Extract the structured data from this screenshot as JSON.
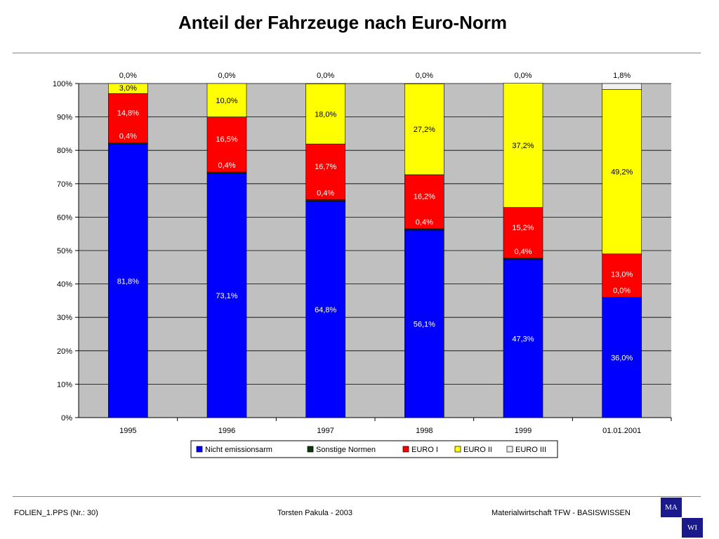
{
  "slide": {
    "title": "Anteil der Fahrzeuge nach Euro-Norm"
  },
  "footer": {
    "left": "FOLIEN_1.PPS (Nr.: 30)",
    "center": "Torsten Pakula - 2003",
    "right": "Materialwirtschaft TFW - BASISWISSEN"
  },
  "logo": {
    "top": "MA",
    "bottom": "WI"
  },
  "chart_data": {
    "type": "bar",
    "stacked": true,
    "title": "",
    "xlabel": "",
    "ylabel": "",
    "ylim": [
      0,
      100
    ],
    "y_ticks": [
      "0%",
      "10%",
      "20%",
      "30%",
      "40%",
      "50%",
      "60%",
      "70%",
      "80%",
      "90%",
      "100%"
    ],
    "grid": "horizontal, every 10%",
    "legend_position": "bottom",
    "categories": [
      "1995",
      "1996",
      "1997",
      "1998",
      "1999",
      "01.01.2001"
    ],
    "series": [
      {
        "name": "Nicht emissionsarm",
        "color": "#0000ff",
        "values": [
          81.8,
          73.1,
          64.8,
          56.1,
          47.3,
          36.0
        ],
        "labels": [
          "81,8%",
          "73,1%",
          "64,8%",
          "56,1%",
          "47,3%",
          "36,0%"
        ]
      },
      {
        "name": "Sonstige Normen",
        "color": "#0a3a0a",
        "values": [
          0.4,
          0.4,
          0.4,
          0.4,
          0.4,
          0.0
        ],
        "labels": [
          "0,4%",
          "0,4%",
          "0,4%",
          "0,4%",
          "0,4%",
          "0,0%"
        ]
      },
      {
        "name": "EURO I",
        "color": "#ff0000",
        "values": [
          14.8,
          16.5,
          16.7,
          16.2,
          15.2,
          13.0
        ],
        "labels": [
          "14,8%",
          "16,5%",
          "16,7%",
          "16,2%",
          "15,2%",
          "13,0%"
        ]
      },
      {
        "name": "EURO II",
        "color": "#ffff00",
        "values": [
          3.0,
          10.0,
          18.0,
          27.2,
          37.2,
          49.2
        ],
        "labels": [
          "3,0%",
          "10,0%",
          "18,0%",
          "27,2%",
          "37,2%",
          "49,2%"
        ]
      },
      {
        "name": "EURO III",
        "color": "#f0f0f0",
        "values": [
          0.0,
          0.0,
          0.0,
          0.0,
          0.0,
          1.8
        ],
        "labels": [
          "0,0%",
          "0,0%",
          "0,0%",
          "0,0%",
          "0,0%",
          "1,8%"
        ]
      }
    ],
    "plot_background": "#c0c0c0"
  }
}
